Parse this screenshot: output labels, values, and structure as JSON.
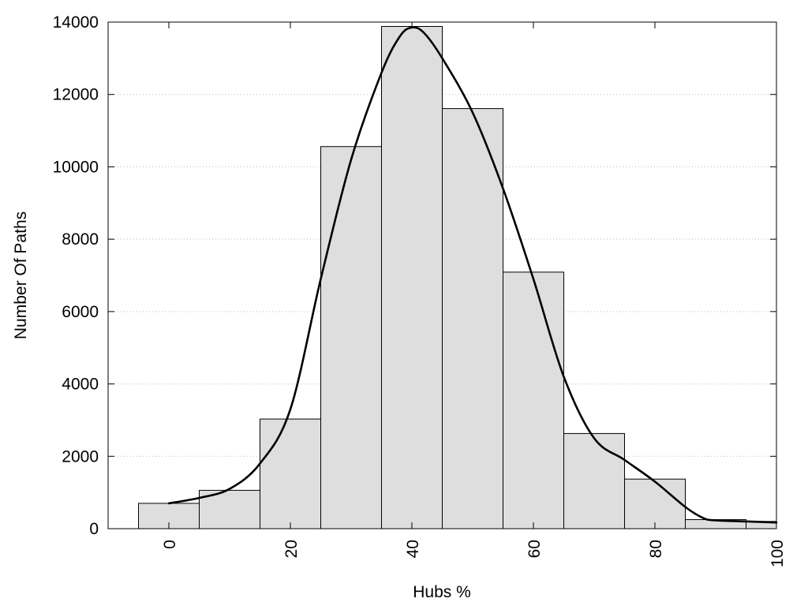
{
  "chart_data": {
    "type": "bar",
    "xlabel": "Hubs %",
    "ylabel": "Number Of Paths",
    "xlim": [
      -10,
      100
    ],
    "ylim": [
      0,
      14000
    ],
    "bin_width": 10,
    "x_ticks": [
      0,
      20,
      40,
      60,
      80,
      100
    ],
    "y_ticks": [
      0,
      2000,
      4000,
      6000,
      8000,
      10000,
      12000,
      14000
    ],
    "grid": "horizontal dotted",
    "bars": {
      "x": [
        0,
        10,
        20,
        30,
        40,
        50,
        60,
        70,
        80,
        90,
        100
      ],
      "values": [
        700,
        1060,
        3030,
        10560,
        13880,
        11610,
        7090,
        2630,
        1370,
        250,
        200
      ]
    },
    "curve": {
      "x": [
        0,
        5,
        10,
        15,
        20,
        25,
        30,
        35,
        38,
        40,
        42,
        45,
        50,
        55,
        60,
        65,
        70,
        75,
        80,
        85,
        88,
        90,
        95,
        100
      ],
      "y": [
        700,
        850,
        1100,
        1800,
        3300,
        6900,
        10200,
        12600,
        13600,
        13850,
        13700,
        13000,
        11500,
        9400,
        6900,
        4200,
        2500,
        1900,
        1300,
        600,
        290,
        230,
        200,
        170
      ]
    },
    "colors": {
      "bar_fill": "#dedede",
      "bar_stroke": "#000000",
      "curve": "#000000",
      "grid": "#bbbbbb"
    }
  }
}
